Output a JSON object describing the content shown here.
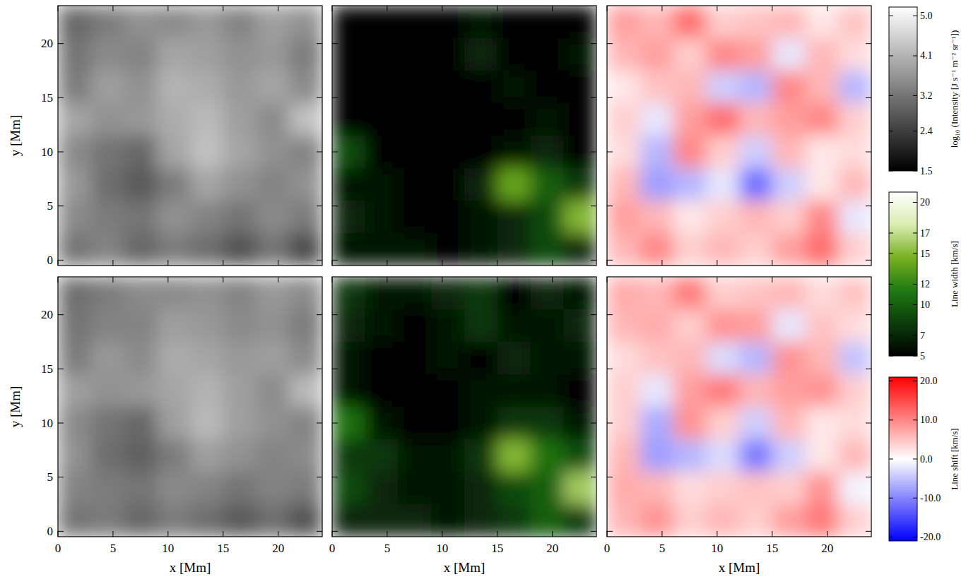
{
  "chart_data": [
    {
      "type": "heatmap",
      "xlim": [
        0,
        24
      ],
      "ylim": [
        -0.5,
        23.5
      ],
      "xticks": [
        0,
        5,
        10,
        15,
        20
      ],
      "yticks": [
        0,
        5,
        10,
        15,
        20
      ],
      "y_label": "y [Mm]",
      "tick_labels": "y",
      "x": [
        1.5,
        4.5,
        7.5,
        10.5,
        13.5,
        16.5,
        19.5,
        22.5
      ],
      "y": [
        22,
        19,
        16,
        13,
        10,
        7,
        4,
        1
      ],
      "values": [
        [
          3.0,
          3.3,
          3.6,
          3.5,
          3.7,
          3.4,
          3.8,
          3.6
        ],
        [
          3.2,
          3.5,
          3.4,
          3.9,
          3.8,
          3.6,
          3.7,
          3.3
        ],
        [
          3.3,
          3.8,
          3.6,
          4.1,
          4.0,
          3.7,
          3.9,
          3.5
        ],
        [
          3.9,
          3.6,
          3.7,
          4.0,
          4.2,
          3.8,
          3.5,
          4.3
        ],
        [
          3.5,
          3.2,
          3.0,
          3.9,
          4.3,
          3.9,
          3.6,
          3.4
        ],
        [
          3.7,
          3.1,
          2.8,
          3.3,
          3.9,
          3.6,
          3.4,
          3.6
        ],
        [
          3.5,
          3.3,
          3.2,
          3.6,
          3.4,
          3.2,
          3.5,
          3.3
        ],
        [
          3.2,
          3.4,
          3.0,
          3.3,
          3.1,
          2.7,
          3.2,
          2.6
        ]
      ],
      "colorbar": {
        "label": "log₁₀ (Intensity [J s⁻¹ m⁻² sr⁻¹])",
        "range": [
          1.5,
          5.2
        ],
        "ticks": [
          1.5,
          2.4,
          3.2,
          4.1,
          {
            "value": 5,
            "label": "5.0"
          }
        ],
        "colors": [
          "#000000",
          "#ffffff"
        ]
      }
    },
    {
      "type": "heatmap",
      "xlim": [
        0,
        24
      ],
      "ylim": [
        -0.5,
        23.5
      ],
      "xticks": [
        0,
        5,
        10,
        15,
        20
      ],
      "yticks": [
        0,
        5,
        10,
        15,
        20
      ],
      "tick_labels": false,
      "x": [
        1.5,
        4.5,
        7.5,
        10.5,
        13.5,
        16.5,
        19.5,
        22.5
      ],
      "y": [
        22,
        19,
        16,
        13,
        10,
        7,
        4,
        1
      ],
      "values": [
        [
          5,
          5,
          5,
          5,
          6,
          5,
          5,
          5
        ],
        [
          5,
          5,
          5,
          5,
          7,
          5,
          5,
          6
        ],
        [
          5,
          5,
          5,
          5,
          5,
          6,
          5,
          5
        ],
        [
          5,
          5,
          5,
          5,
          5,
          5,
          6,
          5
        ],
        [
          9,
          5,
          5,
          5,
          5,
          6,
          7,
          5
        ],
        [
          6,
          6,
          5,
          5,
          7,
          14,
          10,
          8
        ],
        [
          7,
          6,
          5,
          5,
          6,
          7,
          9,
          15
        ],
        [
          6,
          6,
          6,
          5,
          6,
          7,
          9,
          7
        ]
      ],
      "colorbar": {
        "label": "Line width [km/s]",
        "range": [
          5,
          21
        ],
        "ticks": [
          5,
          7,
          10,
          12,
          15,
          17,
          20
        ],
        "colors": [
          "#000000",
          "#0b3d0b",
          "#1f7a12",
          "#78b022",
          "#d9ecb0",
          "#ffffff"
        ]
      }
    },
    {
      "type": "heatmap",
      "xlim": [
        0,
        24
      ],
      "ylim": [
        -0.5,
        23.5
      ],
      "xticks": [
        0,
        5,
        10,
        15,
        20
      ],
      "yticks": [
        0,
        5,
        10,
        15,
        20
      ],
      "tick_labels": false,
      "x": [
        1.5,
        4.5,
        7.5,
        10.5,
        13.5,
        16.5,
        19.5,
        22.5
      ],
      "y": [
        22,
        19,
        16,
        13,
        10,
        7,
        4,
        1
      ],
      "values": [
        [
          8,
          6,
          12,
          4,
          5,
          6,
          2,
          5
        ],
        [
          6,
          8,
          4,
          10,
          8,
          -2,
          6,
          3
        ],
        [
          2,
          5,
          6,
          -4,
          -6,
          10,
          6,
          -6
        ],
        [
          4,
          -2,
          8,
          12,
          6,
          8,
          10,
          4
        ],
        [
          3,
          -6,
          10,
          4,
          -4,
          6,
          2,
          3
        ],
        [
          6,
          -8,
          -6,
          -2,
          -12,
          -4,
          2,
          6
        ],
        [
          8,
          6,
          2,
          4,
          6,
          4,
          10,
          -2
        ],
        [
          6,
          10,
          4,
          6,
          4,
          8,
          12,
          4
        ]
      ],
      "colorbar": {
        "label": "Line shift [km/s]",
        "range": [
          -21,
          21
        ],
        "ticks": [
          {
            "value": -20,
            "label": "-20.0"
          },
          {
            "value": -10,
            "label": "-10.0"
          },
          {
            "value": 0,
            "label": "0.0"
          },
          {
            "value": 10,
            "label": "10.0"
          },
          {
            "value": 20,
            "label": "20.0"
          }
        ],
        "colors": [
          "#0000ff",
          "#ffffff",
          "#ff0000"
        ]
      }
    },
    {
      "type": "heatmap",
      "xlim": [
        0,
        24
      ],
      "ylim": [
        -0.5,
        23.5
      ],
      "xticks": [
        0,
        5,
        10,
        15,
        20
      ],
      "yticks": [
        0,
        5,
        10,
        15,
        20
      ],
      "x_label": "x [Mm]",
      "y_label": "y [Mm]",
      "x": [
        1.5,
        4.5,
        7.5,
        10.5,
        13.5,
        16.5,
        19.5,
        22.5
      ],
      "y": [
        22,
        19,
        16,
        13,
        10,
        7,
        4,
        1
      ],
      "values": [
        [
          3.1,
          3.3,
          3.5,
          3.5,
          3.6,
          3.4,
          3.7,
          3.5
        ],
        [
          3.2,
          3.4,
          3.4,
          3.8,
          3.7,
          3.5,
          3.6,
          3.3
        ],
        [
          3.3,
          3.7,
          3.5,
          4.0,
          3.9,
          3.7,
          3.8,
          3.5
        ],
        [
          3.8,
          3.6,
          3.7,
          3.9,
          4.1,
          3.8,
          3.5,
          4.2
        ],
        [
          3.5,
          3.2,
          3.0,
          3.8,
          4.2,
          3.8,
          3.6,
          3.4
        ],
        [
          3.6,
          3.1,
          2.9,
          3.3,
          3.8,
          3.6,
          3.4,
          3.5
        ],
        [
          3.4,
          3.3,
          3.2,
          3.5,
          3.4,
          3.2,
          3.4,
          3.3
        ],
        [
          3.2,
          3.3,
          3.0,
          3.3,
          3.1,
          2.8,
          3.1,
          2.7
        ]
      ]
    },
    {
      "type": "heatmap",
      "xlim": [
        0,
        24
      ],
      "ylim": [
        -0.5,
        23.5
      ],
      "xticks": [
        0,
        5,
        10,
        15,
        20
      ],
      "yticks": [
        0,
        5,
        10,
        15,
        20
      ],
      "x_label": "x [Mm]",
      "tick_labels": "x",
      "x": [
        1.5,
        4.5,
        7.5,
        10.5,
        13.5,
        16.5,
        19.5,
        22.5
      ],
      "y": [
        22,
        19,
        16,
        13,
        10,
        7,
        4,
        1
      ],
      "values": [
        [
          8,
          6,
          6,
          7,
          8,
          5,
          7,
          6
        ],
        [
          7,
          6,
          5,
          6,
          8,
          6,
          6,
          7
        ],
        [
          6,
          5,
          5,
          6,
          5,
          7,
          6,
          6
        ],
        [
          6,
          5,
          5,
          5,
          6,
          6,
          6,
          5
        ],
        [
          11,
          6,
          5,
          5,
          6,
          8,
          8,
          6
        ],
        [
          8,
          8,
          6,
          6,
          8,
          15,
          11,
          9
        ],
        [
          9,
          7,
          6,
          6,
          7,
          9,
          10,
          16
        ],
        [
          7,
          7,
          7,
          6,
          7,
          8,
          10,
          8
        ]
      ]
    },
    {
      "type": "heatmap",
      "xlim": [
        0,
        24
      ],
      "ylim": [
        -0.5,
        23.5
      ],
      "xticks": [
        0,
        5,
        10,
        15,
        20
      ],
      "yticks": [
        0,
        5,
        10,
        15,
        20
      ],
      "x_label": "x [Mm]",
      "tick_labels": "x",
      "x": [
        1.5,
        4.5,
        7.5,
        10.5,
        13.5,
        16.5,
        19.5,
        22.5
      ],
      "y": [
        22,
        19,
        16,
        13,
        10,
        7,
        4,
        1
      ],
      "values": [
        [
          7,
          6,
          11,
          4,
          5,
          6,
          3,
          5
        ],
        [
          6,
          7,
          4,
          9,
          8,
          -2,
          5,
          3
        ],
        [
          3,
          5,
          6,
          -3,
          -6,
          9,
          6,
          -5
        ],
        [
          4,
          -2,
          8,
          11,
          6,
          8,
          9,
          4
        ],
        [
          4,
          -7,
          9,
          4,
          -4,
          6,
          2,
          3
        ],
        [
          6,
          -8,
          -6,
          -3,
          -11,
          -4,
          2,
          6
        ],
        [
          7,
          6,
          3,
          4,
          5,
          4,
          9,
          -1
        ],
        [
          6,
          9,
          4,
          6,
          4,
          8,
          11,
          4
        ]
      ]
    }
  ]
}
